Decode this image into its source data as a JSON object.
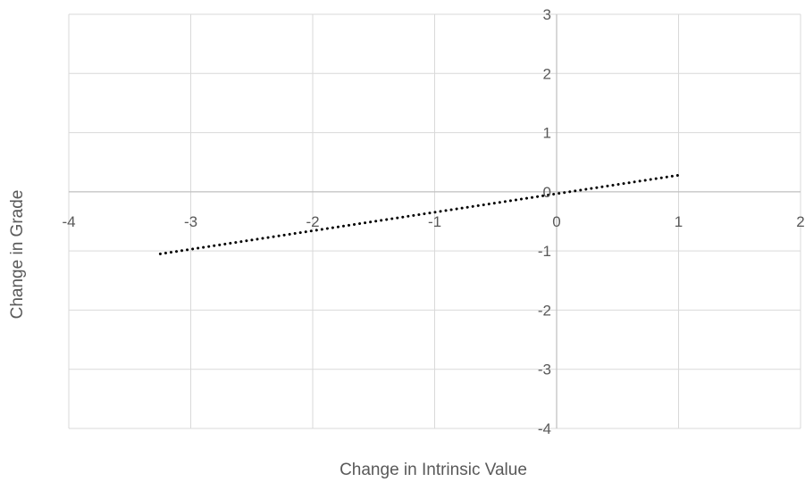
{
  "chart_data": {
    "type": "line",
    "title": "",
    "xlabel": "Change in Intrinsic Value",
    "ylabel": "Change in Grade",
    "xlim": [
      -4,
      2
    ],
    "ylim": [
      -4,
      3
    ],
    "x_ticks": [
      -4,
      -3,
      -2,
      -1,
      0,
      1,
      2
    ],
    "y_ticks": [
      -4,
      -3,
      -2,
      -1,
      0,
      1,
      2,
      3
    ],
    "grid": true,
    "legend": "none",
    "series": [
      {
        "style": "dotted",
        "color": "#000000",
        "x": [
          -3.25,
          1.0
        ],
        "y": [
          -1.05,
          0.28
        ]
      }
    ]
  }
}
